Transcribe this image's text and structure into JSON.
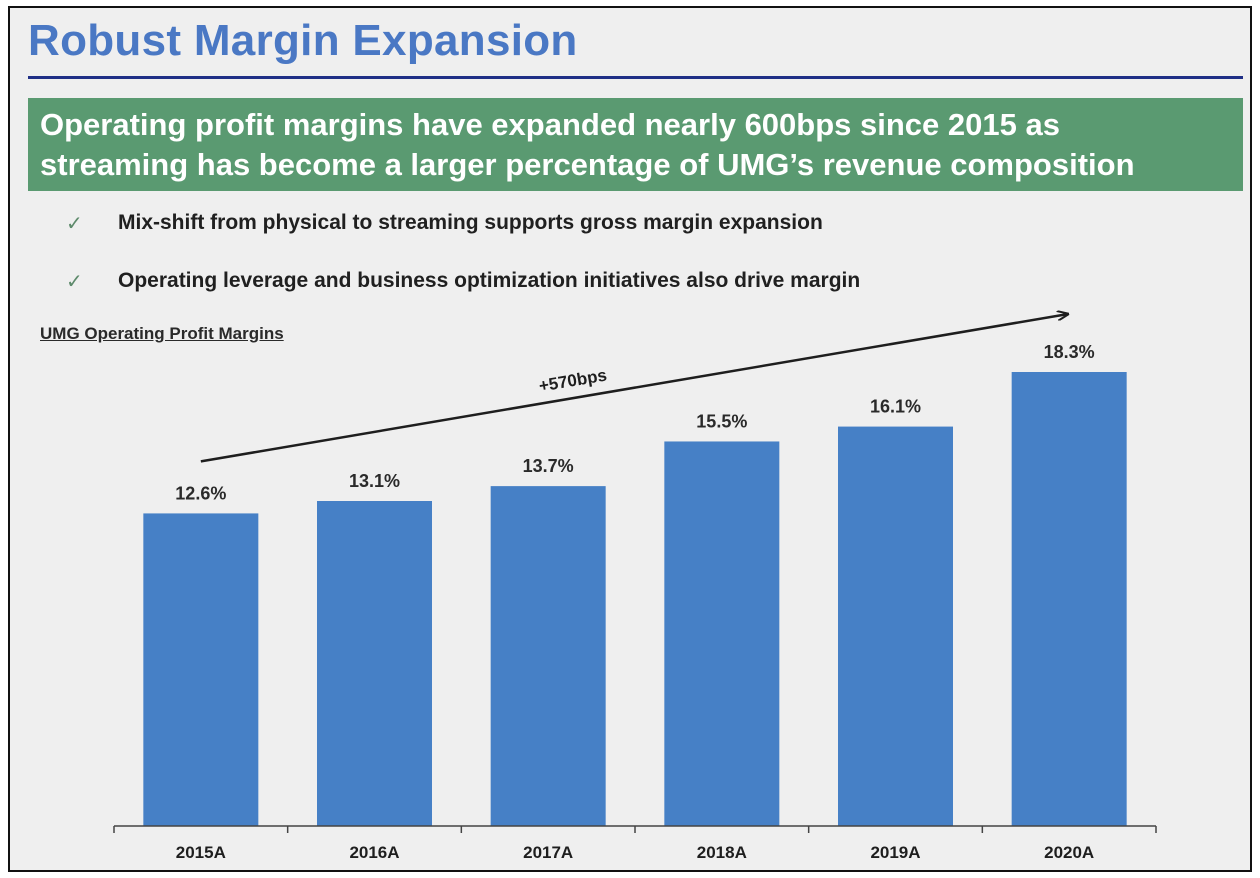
{
  "slide": {
    "title": "Robust Margin Expansion",
    "banner_lines": [
      "Operating profit margins have expanded nearly 600bps since 2015 as",
      "streaming has become a larger percentage of UMG’s revenue composition"
    ],
    "bullets": [
      "Mix-shift from physical to streaming supports gross margin expansion",
      "Operating leverage and business optimization initiatives also drive margin"
    ],
    "check_icon": "✓"
  },
  "colors": {
    "title": "#4a78c4",
    "rule": "#1f2f86",
    "banner": "#5a9a71",
    "bar": "#4680c6"
  },
  "chart_data": {
    "type": "bar",
    "title": "UMG Operating Profit Margins",
    "categories": [
      "2015A",
      "2016A",
      "2017A",
      "2018A",
      "2019A",
      "2020A"
    ],
    "values": [
      12.6,
      13.1,
      13.7,
      15.5,
      16.1,
      18.3
    ],
    "value_labels": [
      "12.6%",
      "13.1%",
      "13.7%",
      "15.5%",
      "16.1%",
      "18.3%"
    ],
    "unit": "%",
    "ylim": [
      0,
      18.3
    ],
    "grid": false,
    "annotation": {
      "text": "+570bps",
      "from_category": "2015A",
      "to_category": "2020A"
    }
  }
}
